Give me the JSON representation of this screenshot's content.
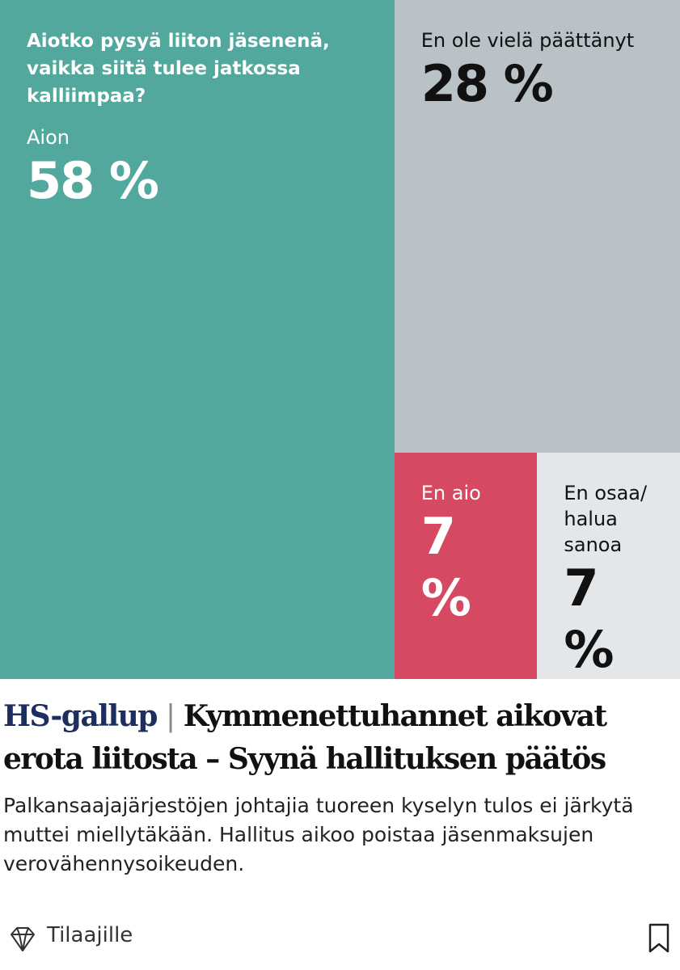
{
  "chart_data": {
    "type": "treemap",
    "title": "Aiotko pysyä liiton jäsenenä, vaikka siitä tulee jatkossa kalliimpaa?",
    "categories": [
      "Aion",
      "En ole vielä päättänyt",
      "En aio",
      "En osaa/ halua sanoa"
    ],
    "values": [
      58,
      28,
      7,
      7
    ],
    "value_labels": [
      "58 %",
      "28 %",
      "7 %",
      "7 %"
    ],
    "colors": [
      "#52a89d",
      "#b9c3c7",
      "#d54963",
      "#e3e7e9"
    ],
    "text_colors": [
      "#ffffff",
      "#111111",
      "#ffffff",
      "#111111"
    ]
  },
  "article": {
    "kicker": "HS-gallup",
    "separator": "|",
    "headline": "Kymmenettuhannet aikovat erota liitosta – Syynä hallituksen päätös",
    "lead": "Palkansaajajärjestöjen johtajia tuoreen kyselyn tulos ei järkytä muttei miellytäkään. Hallitus aikoo poistaa jäsenmaksujen verovähennysoikeuden.",
    "footer_label": "Tilaajille"
  }
}
